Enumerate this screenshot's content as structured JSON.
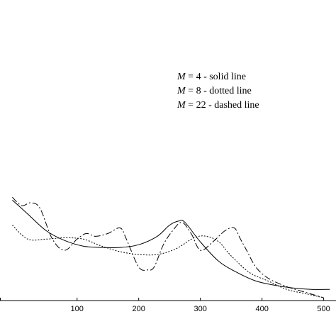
{
  "chart_data": {
    "type": "line",
    "xlim": [
      -25,
      520
    ],
    "ylim": [
      0,
      1
    ],
    "x_ticks": [
      100,
      200,
      300,
      400,
      500
    ],
    "x_tick_labels": [
      "100",
      "200",
      "300",
      "400",
      "500"
    ],
    "grid": false,
    "legend_position": "top-right",
    "legend": [
      {
        "symbol": "M",
        "text": " = 4 - solid line"
      },
      {
        "symbol": "M",
        "text": " = 8 - dotted line"
      },
      {
        "symbol": "M",
        "text": " = 22 - dashed line"
      }
    ],
    "series": [
      {
        "style": "solid",
        "x": [
          -5,
          20,
          50,
          80,
          110,
          140,
          170,
          200,
          230,
          250,
          265,
          275,
          300,
          330,
          360,
          390,
          420,
          450,
          480,
          510
        ],
        "y": [
          0.36,
          0.31,
          0.25,
          0.215,
          0.195,
          0.19,
          0.19,
          0.2,
          0.23,
          0.27,
          0.285,
          0.28,
          0.21,
          0.14,
          0.1,
          0.07,
          0.055,
          0.045,
          0.04,
          0.04
        ]
      },
      {
        "style": "dotted",
        "x": [
          -5,
          20,
          50,
          80,
          110,
          140,
          170,
          200,
          230,
          260,
          290,
          310,
          330,
          350,
          380,
          410,
          440,
          470,
          500
        ],
        "y": [
          0.27,
          0.22,
          0.22,
          0.225,
          0.22,
          0.195,
          0.175,
          0.165,
          0.165,
          0.185,
          0.225,
          0.23,
          0.21,
          0.16,
          0.1,
          0.07,
          0.04,
          0.025,
          0.01
        ]
      },
      {
        "style": "dashed",
        "x": [
          -5,
          10,
          25,
          40,
          60,
          80,
          100,
          115,
          130,
          150,
          170,
          180,
          200,
          215,
          225,
          240,
          255,
          270,
          285,
          300,
          320,
          340,
          355,
          365,
          375,
          390,
          410,
          440,
          470,
          500
        ],
        "y": [
          0.37,
          0.34,
          0.35,
          0.33,
          0.22,
          0.18,
          0.22,
          0.24,
          0.23,
          0.24,
          0.26,
          0.22,
          0.12,
          0.11,
          0.12,
          0.2,
          0.25,
          0.28,
          0.24,
          0.18,
          0.21,
          0.25,
          0.26,
          0.22,
          0.18,
          0.12,
          0.08,
          0.05,
          0.03,
          0.01
        ]
      }
    ]
  }
}
